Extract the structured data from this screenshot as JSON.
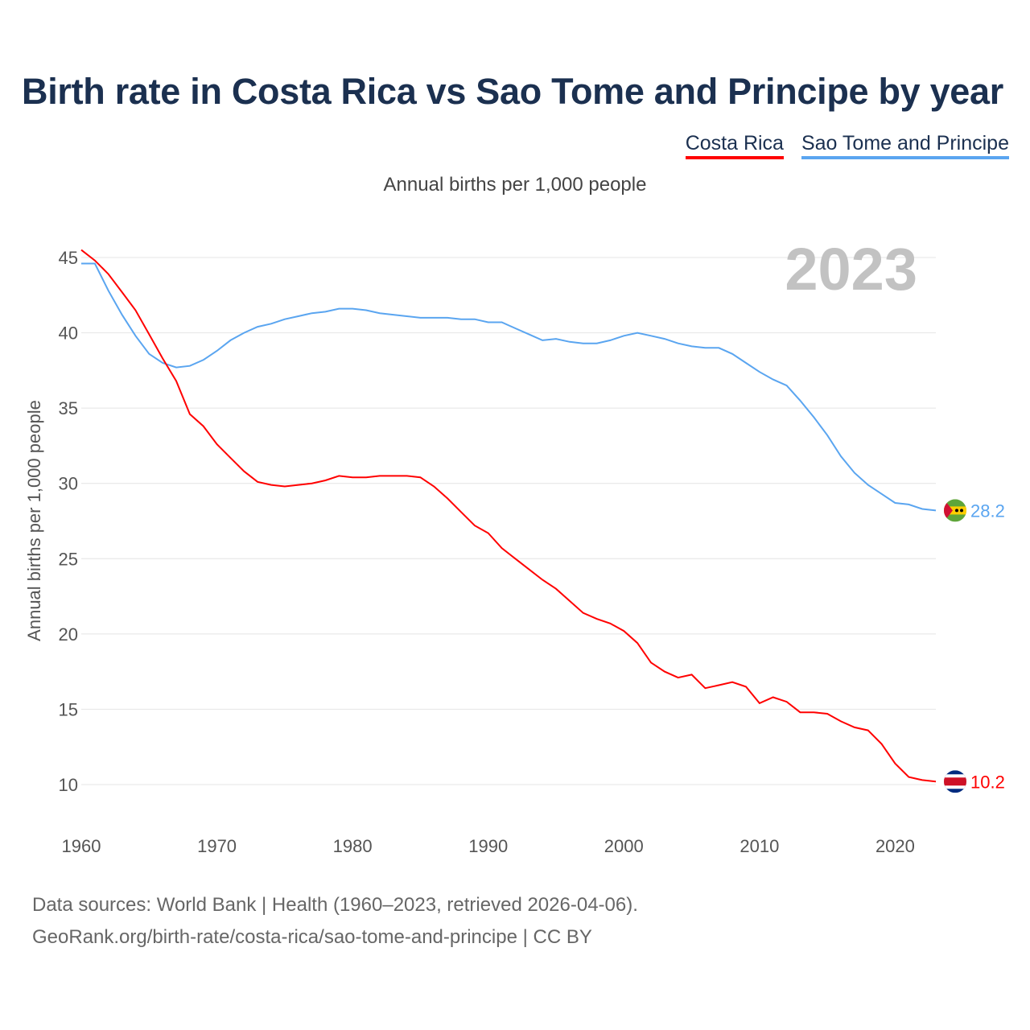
{
  "title": "Birth rate in Costa Rica vs Sao Tome and Principe by year",
  "legend": [
    "Costa Rica",
    "Sao Tome and Principe"
  ],
  "subtitle": "Annual births per 1,000 people",
  "footer": {
    "line1": "Data sources: World Bank | Health (1960–2023, retrieved 2026-04-06).",
    "line2": "GeoRank.org/birth-rate/costa-rica/sao-tome-and-principe | CC BY"
  },
  "chart_data": {
    "type": "line",
    "title": "Birth rate in Costa Rica vs Sao Tome and Principe by year",
    "ylabel": "Annual births per 1,000 people",
    "xlabel": "",
    "year_watermark": "2023",
    "xlim": [
      1960,
      2023
    ],
    "ylim": [
      7.5,
      47
    ],
    "x_ticks": [
      "1960",
      "1970",
      "1980",
      "1990",
      "2000",
      "2010",
      "2020"
    ],
    "y_ticks": [
      "10",
      "15",
      "20",
      "25",
      "30",
      "35",
      "40",
      "45"
    ],
    "grid": true,
    "legend_position": "top-right",
    "x_start": 1960,
    "series": [
      {
        "name": "Costa Rica",
        "color": "#ff0000",
        "end_label": "10.2",
        "values": [
          45.5,
          44.8,
          43.9,
          42.7,
          41.5,
          39.9,
          38.3,
          36.8,
          34.6,
          33.8,
          32.6,
          31.7,
          30.8,
          30.1,
          29.9,
          29.8,
          29.9,
          30.0,
          30.2,
          30.5,
          30.4,
          30.4,
          30.5,
          30.5,
          30.5,
          30.4,
          29.8,
          29.0,
          28.1,
          27.2,
          26.7,
          25.7,
          25.0,
          24.3,
          23.6,
          23.0,
          22.2,
          21.4,
          21.0,
          20.7,
          20.2,
          19.4,
          18.1,
          17.5,
          17.1,
          17.3,
          16.4,
          16.6,
          16.8,
          16.5,
          15.4,
          15.8,
          15.5,
          14.8,
          14.8,
          14.7,
          14.2,
          13.8,
          13.6,
          12.7,
          11.4,
          10.5,
          10.3,
          10.2
        ]
      },
      {
        "name": "Sao Tome and Principe",
        "color": "#5aa5f0",
        "end_label": "28.2",
        "values": [
          44.6,
          44.6,
          42.8,
          41.2,
          39.8,
          38.6,
          38.0,
          37.7,
          37.8,
          38.2,
          38.8,
          39.5,
          40.0,
          40.4,
          40.6,
          40.9,
          41.1,
          41.3,
          41.4,
          41.6,
          41.6,
          41.5,
          41.3,
          41.2,
          41.1,
          41.0,
          41.0,
          41.0,
          40.9,
          40.9,
          40.7,
          40.7,
          40.3,
          39.9,
          39.5,
          39.6,
          39.4,
          39.3,
          39.3,
          39.5,
          39.8,
          40.0,
          39.8,
          39.6,
          39.3,
          39.1,
          39.0,
          39.0,
          38.6,
          38.0,
          37.4,
          36.9,
          36.5,
          35.5,
          34.4,
          33.2,
          31.8,
          30.7,
          29.9,
          29.3,
          28.7,
          28.6,
          28.3,
          28.2
        ]
      }
    ]
  }
}
